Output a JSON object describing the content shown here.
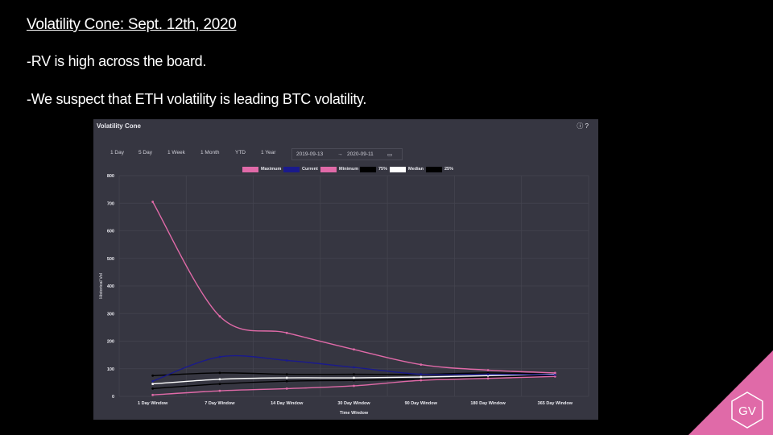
{
  "slide": {
    "title": "Volatility Cone: Sept. 12th, 2020",
    "bullets": [
      "-RV is high across the board.",
      "-We suspect that ETH volatility is leading BTC volatility."
    ],
    "logo_text": "GV",
    "accent_color": "#e06aa8"
  },
  "panel": {
    "title": "Volatility Cone",
    "icons": [
      "info-icon",
      "help-icon"
    ],
    "range_buttons": [
      "1 Day",
      "5 Day",
      "1 Week",
      "1 Month",
      "YTD",
      "1 Year"
    ],
    "date_from": "2019-09-13",
    "date_sep": "→",
    "date_to": "2020-09-11",
    "background": "#363641"
  },
  "chart_data": {
    "type": "line",
    "categories": [
      "1 Day Window",
      "7 Day Window",
      "14 Day Window",
      "30 Day Window",
      "90 Day Window",
      "180 Day Window",
      "365 Day Window"
    ],
    "xlabel": "Time Window",
    "ylabel": "Historical Vol",
    "ylim": [
      0,
      800
    ],
    "yticks": [
      0,
      100,
      200,
      300,
      400,
      500,
      600,
      700,
      800
    ],
    "grid": true,
    "legend_position": "top-center",
    "series": [
      {
        "name": "Maximum",
        "color": "#e06aa8",
        "values": [
          705,
          290,
          230,
          170,
          115,
          95,
          85
        ]
      },
      {
        "name": "Current",
        "color": "#1a1a8c",
        "values": [
          55,
          143,
          130,
          105,
          80,
          80,
          78
        ]
      },
      {
        "name": "Minimum",
        "color": "#e06aa8",
        "values": [
          5,
          20,
          28,
          38,
          58,
          65,
          72
        ]
      },
      {
        "name": "75%",
        "color": "#000000",
        "values": [
          75,
          85,
          80,
          80,
          80,
          85,
          80
        ]
      },
      {
        "name": "Median",
        "color": "#ffffff",
        "values": [
          45,
          62,
          67,
          67,
          70,
          75,
          80
        ]
      },
      {
        "name": "25%",
        "color": "#000000",
        "values": [
          28,
          45,
          55,
          58,
          62,
          70,
          75
        ]
      }
    ]
  }
}
